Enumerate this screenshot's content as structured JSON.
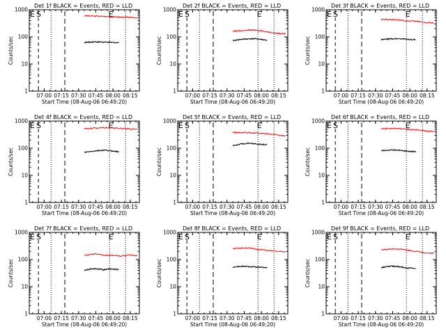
{
  "chart_data": [
    {
      "type": "line",
      "title": "Det 1f BLACK = Events, RED = LLD",
      "xlabel": "Start Time (08-Aug-06 06:49:20)",
      "ylabel": "Counts/sec",
      "yscale": "log",
      "ylim": [
        1,
        1000
      ],
      "x_ticks": [
        "07:00",
        "07:15",
        "07:30",
        "07:45",
        "08:00",
        "08:15"
      ],
      "y_ticks": [
        "1",
        "10",
        "100",
        "1000"
      ],
      "markers": {
        "E_left": "E",
        "S": "S",
        "E_right": "E"
      },
      "series": [
        {
          "color": "#ff0000",
          "start": "07:35",
          "end": "08:21",
          "values": [
            600,
            590,
            580,
            570,
            560,
            550,
            540,
            530,
            520,
            510
          ]
        },
        {
          "color": "#000000",
          "start": "07:35",
          "end": "08:05",
          "values": [
            62,
            64,
            66,
            65,
            64,
            63,
            62,
            61
          ]
        }
      ]
    },
    {
      "type": "line",
      "title": "Det 2f BLACK = Events, RED = LLD",
      "xlabel": "Start Time (08-Aug-06 06:49:20)",
      "ylabel": "Counts/sec",
      "yscale": "log",
      "ylim": [
        1,
        1000
      ],
      "x_ticks": [
        "07:00",
        "07:15",
        "07:30",
        "07:45",
        "08:00",
        "08:15"
      ],
      "y_ticks": [
        "1",
        "10",
        "100",
        "1000"
      ],
      "markers": {
        "E_left": "E",
        "S": "S",
        "E_right": "E"
      },
      "series": [
        {
          "color": "#ff0000",
          "start": "07:35",
          "end": "08:21",
          "values": [
            165,
            170,
            175,
            180,
            175,
            165,
            150,
            140,
            135,
            130
          ]
        },
        {
          "color": "#000000",
          "start": "07:35",
          "end": "08:05",
          "values": [
            72,
            78,
            82,
            84,
            86,
            84,
            80,
            75
          ]
        }
      ]
    },
    {
      "type": "line",
      "title": "Det 3f BLACK = Events, RED = LLD",
      "xlabel": "Start Time (08-Aug-06 06:49:20)",
      "ylabel": "Counts/sec",
      "yscale": "log",
      "ylim": [
        1,
        1000
      ],
      "x_ticks": [
        "07:00",
        "07:15",
        "07:30",
        "07:45",
        "08:00",
        "08:15"
      ],
      "y_ticks": [
        "1",
        "10",
        "100",
        "1000"
      ],
      "markers": {
        "E_left": "E",
        "S": "S",
        "E_right": "E"
      },
      "series": [
        {
          "color": "#ff0000",
          "start": "07:35",
          "end": "08:21",
          "values": [
            450,
            440,
            430,
            420,
            400,
            390,
            380,
            360,
            340,
            320
          ]
        },
        {
          "color": "#000000",
          "start": "07:35",
          "end": "08:05",
          "values": [
            78,
            82,
            85,
            86,
            85,
            83,
            80,
            78
          ]
        }
      ]
    },
    {
      "type": "line",
      "title": "Det 4f BLACK = Events, RED = LLD",
      "xlabel": "Start Time (08-Aug-06 06:49:20)",
      "ylabel": "Counts/sec",
      "yscale": "log",
      "ylim": [
        1,
        1000
      ],
      "x_ticks": [
        "07:00",
        "07:15",
        "07:30",
        "07:45",
        "08:00",
        "08:15"
      ],
      "y_ticks": [
        "1",
        "10",
        "100",
        "1000"
      ],
      "markers": {
        "E_left": "E",
        "S": "S",
        "E_right": "E"
      },
      "series": [
        {
          "color": "#ff0000",
          "start": "07:35",
          "end": "08:21",
          "values": [
            520,
            540,
            560,
            580,
            570,
            560,
            540,
            520,
            510,
            500
          ]
        },
        {
          "color": "#000000",
          "start": "07:35",
          "end": "08:05",
          "values": [
            70,
            74,
            78,
            82,
            84,
            82,
            78,
            74
          ]
        }
      ]
    },
    {
      "type": "line",
      "title": "Det 5f BLACK = Events, RED = LLD",
      "xlabel": "Start Time (08-Aug-06 06:49:20)",
      "ylabel": "Counts/sec",
      "yscale": "log",
      "ylim": [
        1,
        1000
      ],
      "x_ticks": [
        "07:00",
        "07:15",
        "07:30",
        "07:45",
        "08:00",
        "08:15"
      ],
      "y_ticks": [
        "1",
        "10",
        "100",
        "1000"
      ],
      "markers": {
        "E_left": "E",
        "S": "S",
        "E_right": "E"
      },
      "series": [
        {
          "color": "#ff0000",
          "start": "07:35",
          "end": "08:21",
          "values": [
            380,
            380,
            375,
            370,
            360,
            350,
            340,
            320,
            300,
            290
          ]
        },
        {
          "color": "#000000",
          "start": "07:35",
          "end": "08:05",
          "values": [
            125,
            135,
            145,
            150,
            148,
            142,
            138,
            135
          ]
        }
      ]
    },
    {
      "type": "line",
      "title": "Det 6f BLACK = Events, RED = LLD",
      "xlabel": "Start Time (08-Aug-06 06:49:20)",
      "ylabel": "Counts/sec",
      "yscale": "log",
      "ylim": [
        1,
        1000
      ],
      "x_ticks": [
        "07:00",
        "07:15",
        "07:30",
        "07:45",
        "08:00",
        "08:15"
      ],
      "y_ticks": [
        "1",
        "10",
        "100",
        "1000"
      ],
      "markers": {
        "E_left": "E",
        "S": "S",
        "E_right": "E"
      },
      "series": [
        {
          "color": "#ff0000",
          "start": "07:35",
          "end": "08:21",
          "values": [
            520,
            530,
            540,
            530,
            510,
            490,
            470,
            450,
            430,
            410
          ]
        },
        {
          "color": "#000000",
          "start": "07:35",
          "end": "08:05",
          "values": [
            80,
            84,
            86,
            85,
            82,
            79,
            76,
            74
          ]
        }
      ]
    },
    {
      "type": "line",
      "title": "Det 7f BLACK = Events, RED = LLD",
      "xlabel": "Start Time (08-Aug-06 06:49:20)",
      "ylabel": "Counts/sec",
      "yscale": "log",
      "ylim": [
        1,
        1000
      ],
      "x_ticks": [
        "07:00",
        "07:15",
        "07:30",
        "07:45",
        "08:00",
        "08:15"
      ],
      "y_ticks": [
        "1",
        "10",
        "100",
        "1000"
      ],
      "markers": {
        "E_left": "E",
        "S": "S",
        "E_right": "E"
      },
      "series": [
        {
          "color": "#ff0000",
          "start": "07:35",
          "end": "08:21",
          "values": [
            140,
            155,
            165,
            150,
            140,
            145,
            135,
            140,
            150,
            135
          ]
        },
        {
          "color": "#000000",
          "start": "07:35",
          "end": "08:05",
          "values": [
            40,
            44,
            46,
            45,
            42,
            45,
            44,
            43
          ]
        }
      ]
    },
    {
      "type": "line",
      "title": "Det 8f BLACK = Events, RED = LLD",
      "xlabel": "Start Time (08-Aug-06 06:49:20)",
      "ylabel": "Counts/sec",
      "yscale": "log",
      "ylim": [
        1,
        1000
      ],
      "x_ticks": [
        "07:00",
        "07:15",
        "07:30",
        "07:45",
        "08:00",
        "08:15"
      ],
      "y_ticks": [
        "1",
        "10",
        "100",
        "1000"
      ],
      "markers": {
        "E_left": "E",
        "S": "S",
        "E_right": "E"
      },
      "series": [
        {
          "color": "#ff0000",
          "start": "07:35",
          "end": "08:21",
          "values": [
            250,
            260,
            270,
            260,
            240,
            230,
            220,
            210,
            200,
            195
          ]
        },
        {
          "color": "#000000",
          "start": "07:35",
          "end": "08:05",
          "values": [
            52,
            55,
            56,
            55,
            54,
            52,
            51,
            50
          ]
        }
      ]
    },
    {
      "type": "line",
      "title": "Det 9f BLACK = Events, RED = LLD",
      "xlabel": "Start Time (08-Aug-06 06:49:20)",
      "ylabel": "Counts/sec",
      "yscale": "log",
      "ylim": [
        1,
        1000
      ],
      "x_ticks": [
        "07:00",
        "07:15",
        "07:30",
        "07:45",
        "08:00",
        "08:15"
      ],
      "y_ticks": [
        "1",
        "10",
        "100",
        "1000"
      ],
      "markers": {
        "E_left": "E",
        "S": "S",
        "E_right": "E"
      },
      "series": [
        {
          "color": "#ff0000",
          "start": "07:35",
          "end": "08:21",
          "values": [
            230,
            240,
            250,
            245,
            230,
            215,
            200,
            185,
            175,
            170
          ]
        },
        {
          "color": "#000000",
          "start": "07:35",
          "end": "08:05",
          "values": [
            50,
            54,
            57,
            56,
            53,
            50,
            48,
            47
          ]
        }
      ]
    }
  ]
}
